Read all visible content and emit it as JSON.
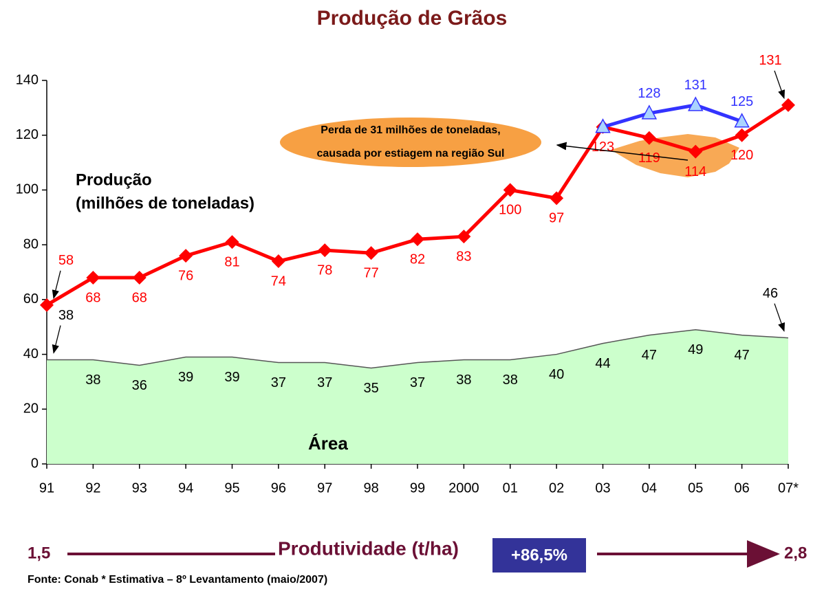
{
  "chart_data": {
    "type": "line",
    "title": "Produção de Grãos",
    "categories": [
      "91",
      "92",
      "93",
      "94",
      "95",
      "96",
      "97",
      "98",
      "99",
      "2000",
      "01",
      "02",
      "03",
      "04",
      "05",
      "06",
      "07*"
    ],
    "series": [
      {
        "color": "#ff0000",
        "style": "line-diamond",
        "values": [
          58,
          68,
          68,
          76,
          81,
          74,
          78,
          77,
          82,
          83,
          100,
          97,
          123,
          119,
          114,
          120,
          131
        ]
      },
      {
        "color": "#3333ff",
        "style": "line-triangle",
        "values": [
          null,
          null,
          null,
          null,
          null,
          null,
          null,
          null,
          null,
          null,
          null,
          null,
          123,
          128,
          131,
          125,
          null
        ]
      },
      {
        "color": "#ccffcc",
        "style": "area",
        "values": [
          38,
          38,
          36,
          39,
          39,
          37,
          37,
          35,
          37,
          38,
          38,
          40,
          44,
          47,
          49,
          47,
          46
        ]
      }
    ],
    "ylim": [
      0,
      140
    ],
    "yticks": [
      0,
      20,
      40,
      60,
      80,
      100,
      120,
      140
    ],
    "grid": false,
    "annotations": {
      "production_label": [
        "Produção",
        "(milhões de toneladas)"
      ],
      "area_label": "Área",
      "callout": [
        "Perda de 31 milhões de toneladas,",
        "causada por estiagem na região Sul"
      ]
    },
    "footer": {
      "start": "1,5",
      "label": "Produtividade (t/ha)",
      "change": "+86,5%",
      "end": "2,8",
      "source": "Fonte: Conab * Estimativa – 8º Levantamento (maio/2007)"
    }
  }
}
